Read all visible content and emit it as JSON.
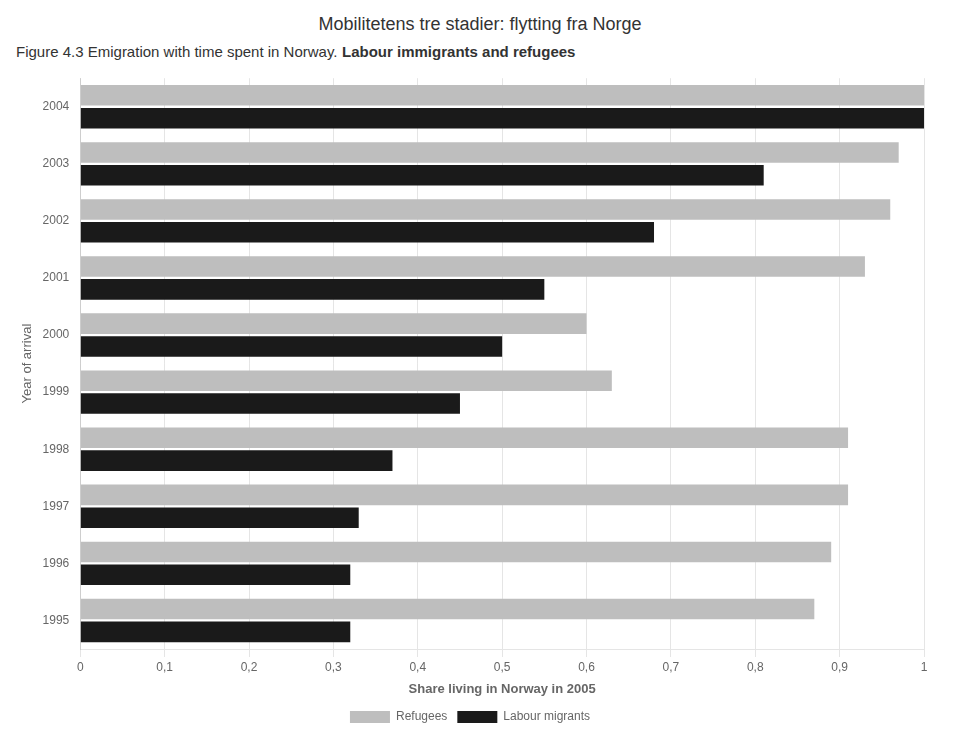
{
  "chart_data": {
    "type": "bar",
    "orientation": "horizontal",
    "title": "Mobilitetens  tre stadier: flytting fra Norge",
    "subtitle": [
      "Figure 4.3 Emigration with time spent in Norway.",
      "Labour immigrants and refugees"
    ],
    "x_label": "Share living in Norway in 2005",
    "y_label": "Year of arrival",
    "categories": [
      "2004",
      "2003",
      "2002",
      "2001",
      "2000",
      "1999",
      "1998",
      "1997",
      "1996",
      "1995"
    ],
    "series": [
      {
        "name": "Refugees",
        "color": "#bebebe",
        "values": [
          1.0,
          0.97,
          0.96,
          0.93,
          0.6,
          0.63,
          0.91,
          0.91,
          0.89,
          0.87
        ]
      },
      {
        "name": "Labour migrants",
        "color": "#1a1a1a",
        "values": [
          1.0,
          0.81,
          0.68,
          0.55,
          0.5,
          0.45,
          0.37,
          0.33,
          0.32,
          0.32
        ]
      }
    ],
    "xlim": [
      0,
      1
    ],
    "xticks": [
      0,
      {
        "value": 0.1,
        "label": "0,1"
      },
      {
        "value": 0.2,
        "label": "0,2"
      },
      {
        "value": 0.3,
        "label": "0,3"
      },
      {
        "value": 0.4,
        "label": "0,4"
      },
      {
        "value": 0.5,
        "label": "0,5"
      },
      {
        "value": 0.6,
        "label": "0,6"
      },
      {
        "value": 0.7,
        "label": "0,7"
      },
      {
        "value": 0.8,
        "label": "0,8"
      },
      {
        "value": 0.9,
        "label": "0,9"
      },
      1
    ],
    "grid": true,
    "legend": "bottom"
  }
}
